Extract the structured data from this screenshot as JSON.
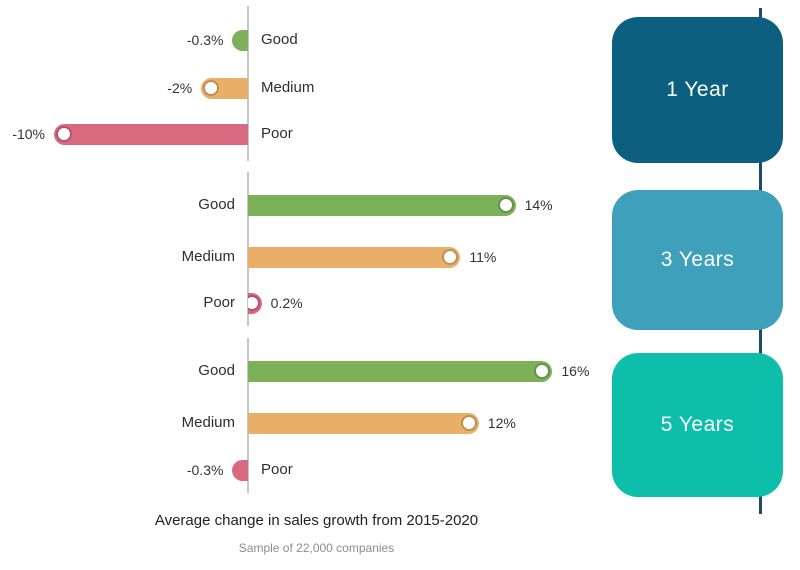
{
  "chart_data": {
    "type": "bar",
    "orientation": "horizontal",
    "title": "Average change in sales growth from 2015-2020",
    "subtitle": "Sample of 22,000 companies",
    "unit": "%",
    "categories": [
      "Good",
      "Medium",
      "Poor"
    ],
    "series_colors": {
      "Good": "#7cb15a",
      "Medium": "#e9ae67",
      "Poor": "#d8697f"
    },
    "groups": [
      {
        "label": "1 Year",
        "box_color": "#0d5f80",
        "values": [
          -0.3,
          -2,
          -10
        ],
        "value_labels": [
          "-0.3%",
          "-2%",
          "-10%"
        ]
      },
      {
        "label": "3 Years",
        "box_color": "#3fa0bc",
        "values": [
          14,
          11,
          0.2
        ],
        "value_labels": [
          "14%",
          "11%",
          "0.2%"
        ]
      },
      {
        "label": "5 Years",
        "box_color": "#0dbfab",
        "values": [
          16,
          12,
          -0.3
        ],
        "value_labels": [
          "16%",
          "12%",
          "-0.3%"
        ]
      }
    ],
    "xlim": [
      -12,
      17
    ],
    "zero_axis_color": "#c6c6c6",
    "timeline_color": "#1d4b61",
    "grid": false,
    "legend_position": "none"
  }
}
